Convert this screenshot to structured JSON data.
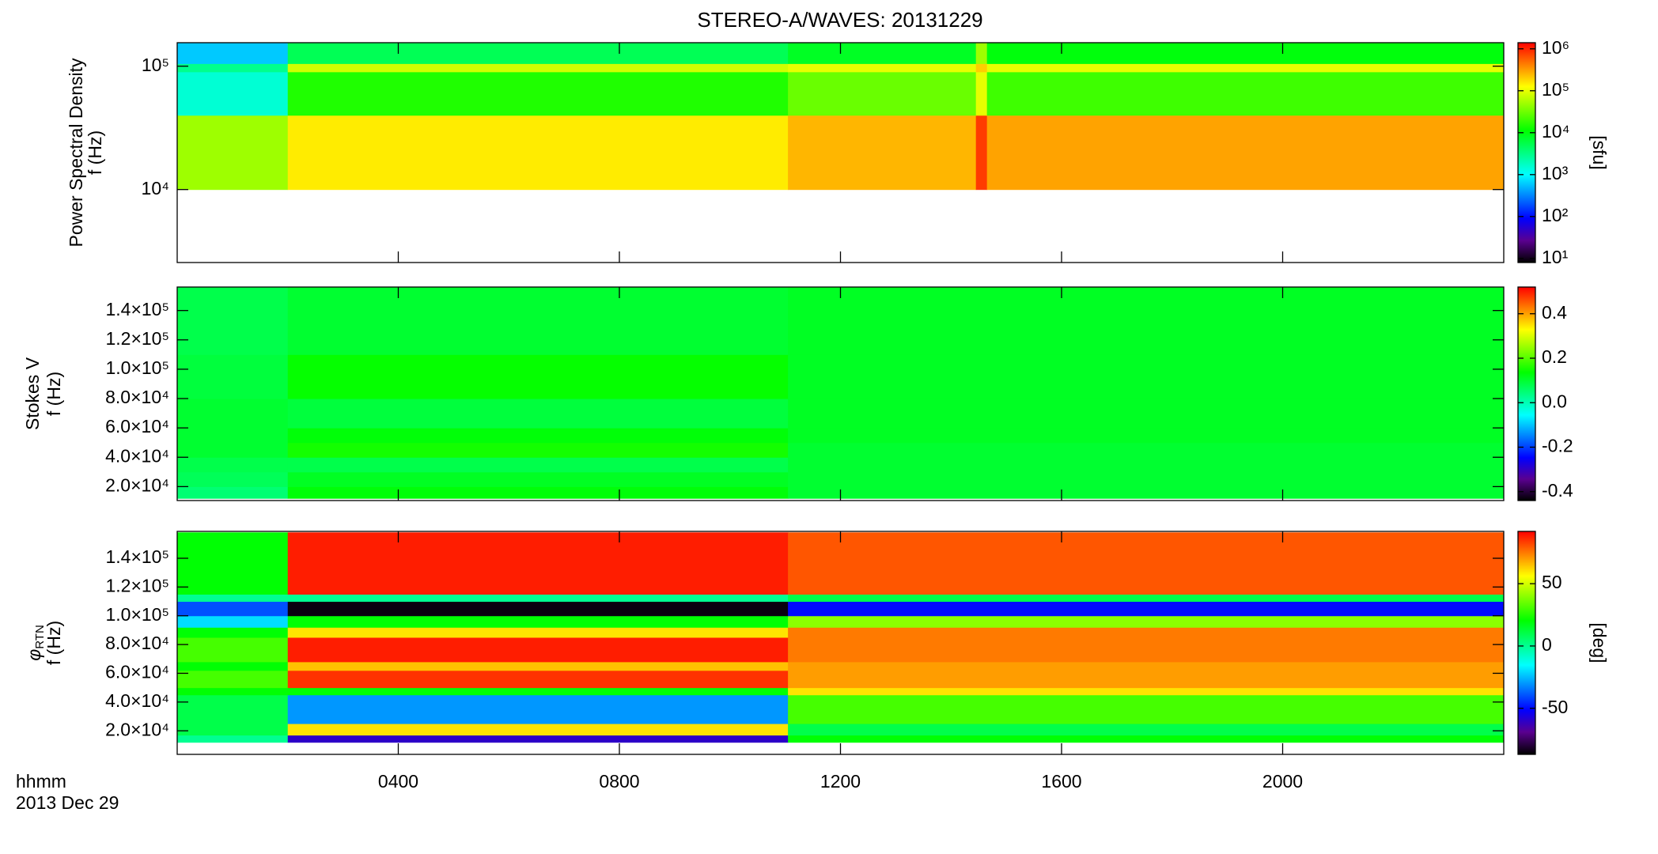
{
  "chart_data": {
    "type": "heatmap",
    "title": "STEREO-A/WAVES: 20131229",
    "xlim": [
      0,
      24
    ],
    "xticks": [
      {
        "value": 4,
        "label": "0400"
      },
      {
        "value": 8,
        "label": "0800"
      },
      {
        "value": 12,
        "label": "1200"
      },
      {
        "value": 16,
        "label": "1600"
      },
      {
        "value": 20,
        "label": "2000"
      }
    ],
    "xlabel": [
      "hhmm",
      "2013 Dec 29"
    ],
    "colormap": [
      "#000000",
      "#5a0090",
      "#0000ff",
      "#0080ff",
      "#00ffff",
      "#00ff80",
      "#00ff00",
      "#80ff00",
      "#ffff00",
      "#ff8000",
      "#ff0000"
    ],
    "panels": [
      {
        "ylabel": [
          "Power Spectral Density",
          "f (Hz)"
        ],
        "yscale": "log",
        "ylim": [
          2560,
          155000
        ],
        "yticks": [
          {
            "value": 10000,
            "label": "10⁴"
          },
          {
            "value": 100000,
            "label": "10⁵"
          }
        ],
        "x_edges": [
          0,
          2,
          11.05,
          14.45,
          14.65,
          24
        ],
        "y_edges": [
          10000,
          40000,
          90000,
          105000,
          155000
        ],
        "z": [
          [
            50000,
            150000,
            250000,
            800000,
            300000
          ],
          [
            1500,
            15000,
            30000,
            100000,
            20000
          ],
          [
            3000,
            80000,
            100000,
            200000,
            100000
          ],
          [
            600,
            5000,
            8000,
            50000,
            10000
          ]
        ],
        "colorbar": {
          "scale": "log",
          "lim": [
            8,
            1400000
          ],
          "label": "[sfu]",
          "ticks": [
            {
              "value": 10,
              "label": "10¹"
            },
            {
              "value": 100,
              "label": "10²"
            },
            {
              "value": 1000,
              "label": "10³"
            },
            {
              "value": 10000,
              "label": "10⁴"
            },
            {
              "value": 100000,
              "label": "10⁵"
            },
            {
              "value": 1000000,
              "label": "10⁶"
            }
          ]
        }
      },
      {
        "ylabel": [
          "Stokes V",
          "f (Hz)"
        ],
        "yscale": "linear",
        "ylim": [
          10500,
          156000
        ],
        "yticks": [
          {
            "value": 20000,
            "label": "2.0×10⁴"
          },
          {
            "value": 40000,
            "label": "4.0×10⁴"
          },
          {
            "value": 60000,
            "label": "6.0×10⁴"
          },
          {
            "value": 80000,
            "label": "8.0×10⁴"
          },
          {
            "value": 100000,
            "label": "1.0×10⁵"
          },
          {
            "value": 120000,
            "label": "1.2×10⁵"
          },
          {
            "value": 140000,
            "label": "1.4×10⁵"
          }
        ],
        "x_edges": [
          0,
          2,
          11.05,
          24
        ],
        "y_edges": [
          12000,
          20000,
          30000,
          40000,
          50000,
          60000,
          80000,
          110000,
          156000
        ],
        "z": [
          [
            0.05,
            0.13,
            0.1
          ],
          [
            0.07,
            0.11,
            0.1
          ],
          [
            0.08,
            0.08,
            0.1
          ],
          [
            0.1,
            0.15,
            0.1
          ],
          [
            0.1,
            0.13,
            0.11
          ],
          [
            0.1,
            0.09,
            0.11
          ],
          [
            0.09,
            0.14,
            0.11
          ],
          [
            0.08,
            0.1,
            0.11
          ]
        ],
        "colorbar": {
          "scale": "linear",
          "lim": [
            -0.44,
            0.52
          ],
          "ticks": [
            -0.4,
            -0.2,
            {
              "value": 0,
              "label": "0.0"
            },
            0.2,
            0.4
          ]
        }
      },
      {
        "ylabel": [
          {
            "text": "φ",
            "sub": "RTN"
          },
          "f (Hz)"
        ],
        "yscale": "linear",
        "ylim": [
          3600,
          158700
        ],
        "yticks": [
          {
            "value": 20000,
            "label": "2.0×10⁴"
          },
          {
            "value": 40000,
            "label": "4.0×10⁴"
          },
          {
            "value": 60000,
            "label": "6.0×10⁴"
          },
          {
            "value": 80000,
            "label": "8.0×10⁴"
          },
          {
            "value": 100000,
            "label": "1.0×10⁵"
          },
          {
            "value": 120000,
            "label": "1.2×10⁵"
          },
          {
            "value": 140000,
            "label": "1.4×10⁵"
          }
        ],
        "x_edges": [
          0,
          2,
          11.05,
          24
        ],
        "y_edges": [
          12000,
          17000,
          25000,
          45000,
          50000,
          62000,
          68000,
          85000,
          92000,
          100000,
          110000,
          115000,
          158000
        ],
        "z": [
          [
            0,
            -60,
            20
          ],
          [
            10,
            60,
            10
          ],
          [
            10,
            -30,
            30
          ],
          [
            20,
            20,
            60
          ],
          [
            30,
            85,
            70
          ],
          [
            20,
            65,
            70
          ],
          [
            30,
            88,
            75
          ],
          [
            20,
            60,
            75
          ],
          [
            -20,
            20,
            40
          ],
          [
            -40,
            -85,
            -50
          ],
          [
            0,
            0,
            10
          ],
          [
            20,
            88,
            80
          ]
        ],
        "colorbar": {
          "scale": "linear",
          "lim": [
            -87,
            92
          ],
          "label": "[deg]",
          "ticks": [
            -50,
            0,
            50
          ]
        }
      }
    ]
  }
}
